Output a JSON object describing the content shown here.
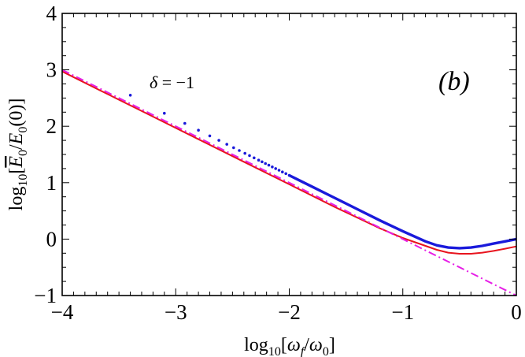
{
  "chart_data": {
    "type": "line",
    "title": "",
    "xlabel": {
      "prefix": "log",
      "sub": "10",
      "open": "[",
      "num": "ω",
      "num_sub": "f",
      "slash": "/",
      "den": "ω",
      "den_sub": "0",
      "close": "]"
    },
    "ylabel": {
      "prefix": "log",
      "sub": "10",
      "open": "[",
      "num": "E",
      "num_sub": "0",
      "slash": "/",
      "den": "E",
      "den_sub": "0",
      "arg": "(0)",
      "close": "]"
    },
    "xlim": [
      -4,
      0
    ],
    "ylim": [
      -1,
      4
    ],
    "x_ticks": [
      -4,
      -3,
      -2,
      -1,
      0
    ],
    "x_tick_labels": [
      "−4",
      "−3",
      "−2",
      "−1",
      "0"
    ],
    "y_ticks": [
      -1,
      0,
      1,
      2,
      3,
      4
    ],
    "y_tick_labels": [
      "−1",
      "0",
      "1",
      "2",
      "3",
      "4"
    ],
    "grid": false,
    "annotations": {
      "panel_label": "(b)",
      "delta_symbol": "δ",
      "delta_value": " = −1"
    },
    "series": [
      {
        "style": "dotted",
        "color": "#1a1adb",
        "points": [
          [
            -3.4,
            2.55
          ],
          [
            -3.1,
            2.23
          ],
          [
            -2.92,
            2.05
          ],
          [
            -2.8,
            1.93
          ],
          [
            -2.7,
            1.83
          ],
          [
            -2.62,
            1.75
          ],
          [
            -2.55,
            1.68
          ],
          [
            -2.49,
            1.62
          ],
          [
            -2.44,
            1.57
          ],
          [
            -2.39,
            1.52
          ],
          [
            -2.35,
            1.48
          ],
          [
            -2.31,
            1.44
          ],
          [
            -2.27,
            1.4
          ],
          [
            -2.24,
            1.37
          ],
          [
            -2.21,
            1.34
          ],
          [
            -2.18,
            1.31
          ],
          [
            -2.15,
            1.28
          ],
          [
            -2.12,
            1.25
          ],
          [
            -2.09,
            1.22
          ],
          [
            -2.06,
            1.19
          ],
          [
            -2.03,
            1.16
          ],
          [
            -2.0,
            1.13
          ]
        ]
      },
      {
        "style": "solid",
        "color": "#1a1adb",
        "points": [
          [
            -2.0,
            1.13
          ],
          [
            -1.8,
            0.93
          ],
          [
            -1.6,
            0.73
          ],
          [
            -1.4,
            0.53
          ],
          [
            -1.2,
            0.33
          ],
          [
            -1.0,
            0.14
          ],
          [
            -0.8,
            -0.04
          ],
          [
            -0.7,
            -0.11
          ],
          [
            -0.6,
            -0.15
          ],
          [
            -0.5,
            -0.16
          ],
          [
            -0.4,
            -0.15
          ],
          [
            -0.3,
            -0.12
          ],
          [
            -0.2,
            -0.08
          ],
          [
            -0.1,
            -0.04
          ],
          [
            0.0,
            0.0
          ]
        ]
      },
      {
        "style": "solid",
        "color": "#e8141e",
        "points": [
          [
            -4.0,
            2.97
          ],
          [
            -3.6,
            2.57
          ],
          [
            -3.2,
            2.17
          ],
          [
            -2.8,
            1.77
          ],
          [
            -2.4,
            1.37
          ],
          [
            -2.0,
            0.97
          ],
          [
            -1.6,
            0.57
          ],
          [
            -1.4,
            0.38
          ],
          [
            -1.2,
            0.19
          ],
          [
            -1.0,
            0.02
          ],
          [
            -0.8,
            -0.12
          ],
          [
            -0.7,
            -0.19
          ],
          [
            -0.6,
            -0.24
          ],
          [
            -0.5,
            -0.26
          ],
          [
            -0.4,
            -0.26
          ],
          [
            -0.3,
            -0.24
          ],
          [
            -0.2,
            -0.21
          ],
          [
            -0.1,
            -0.17
          ],
          [
            0.0,
            -0.13
          ]
        ]
      },
      {
        "style": "dashdot",
        "color": "#e61fe6",
        "points": [
          [
            -4.0,
            3.0
          ],
          [
            0.0,
            -1.0
          ]
        ]
      }
    ]
  }
}
